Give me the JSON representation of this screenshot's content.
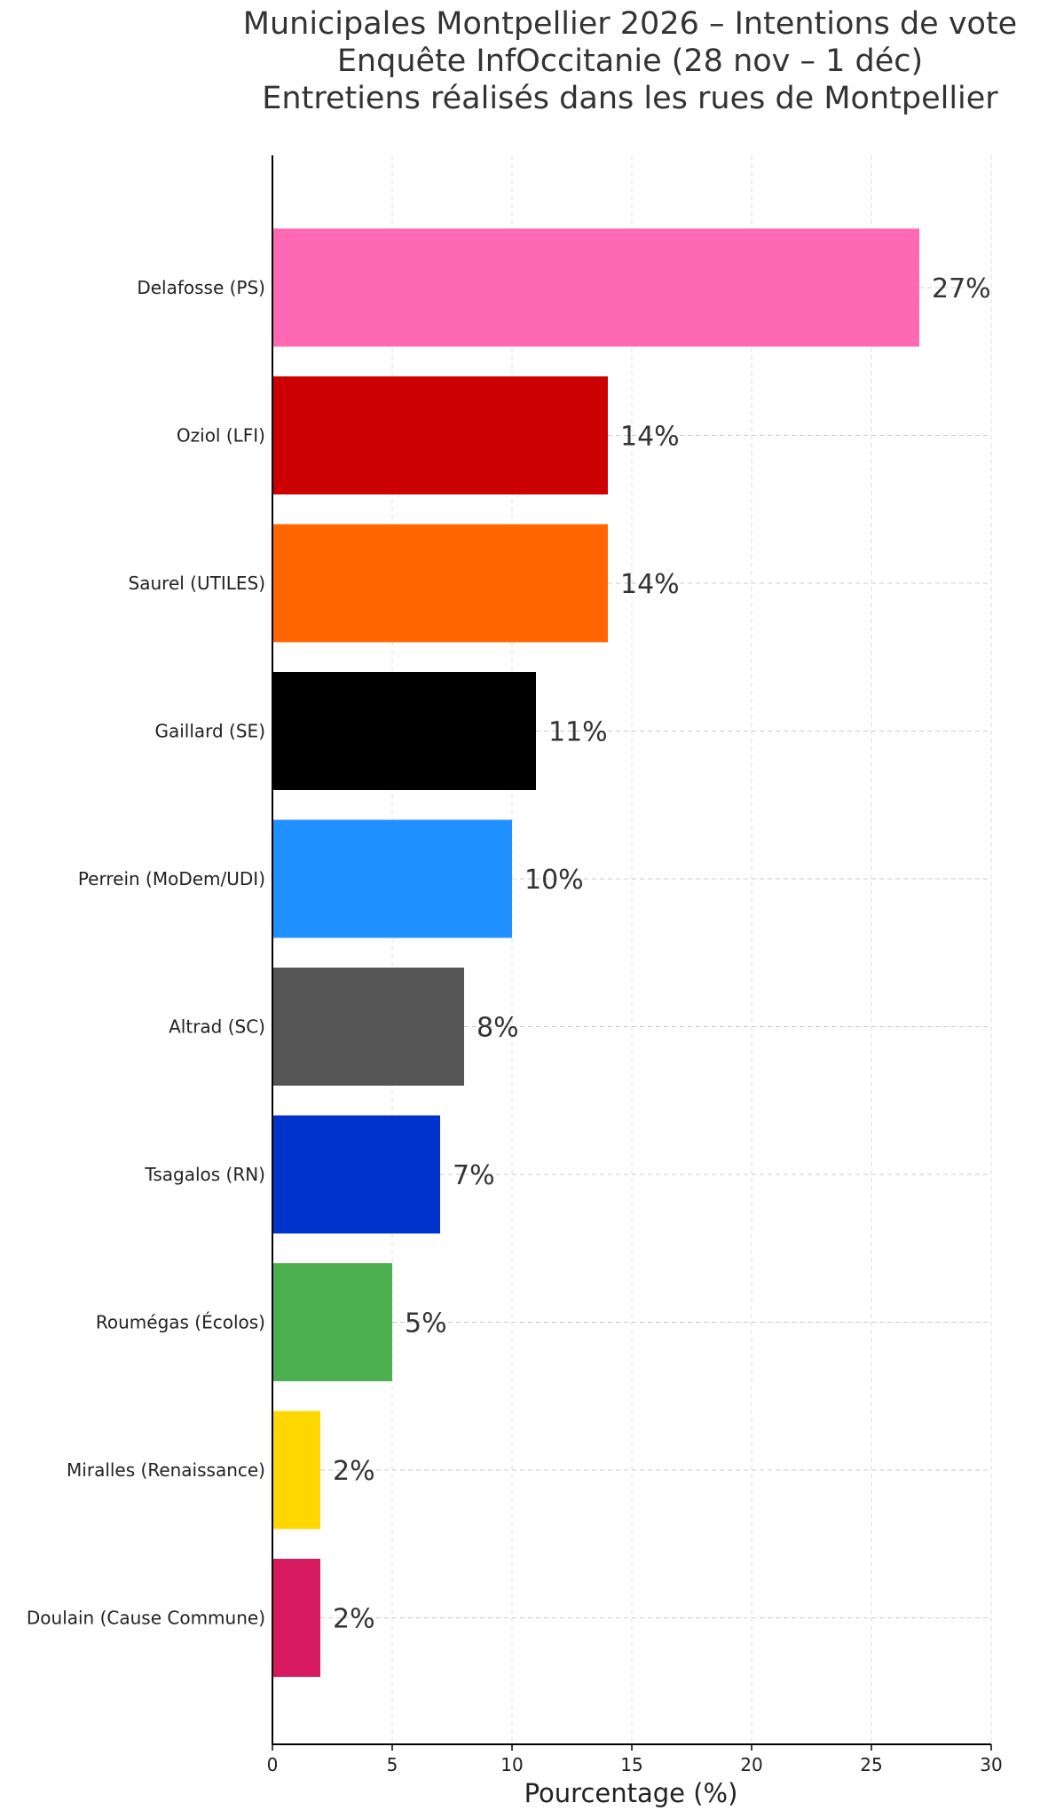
{
  "chart_data": {
    "type": "bar",
    "orientation": "horizontal",
    "title_lines": [
      "Municipales Montpellier 2026 – Intentions de vote",
      "Enquête InfOccitanie (28 nov – 1 déc)",
      "Entretiens réalisés dans les rues de Montpellier"
    ],
    "xlabel": "Pourcentage (%)",
    "ylabel": "",
    "xlim": [
      0,
      30
    ],
    "xticks": [
      0,
      5,
      10,
      15,
      20,
      25,
      30
    ],
    "grid": "x",
    "value_suffix": "%",
    "categories": [
      "Delafosse (PS)",
      "Oziol (LFI)",
      "Saurel (UTILES)",
      "Gaillard (SE)",
      "Perrein (MoDem/UDI)",
      "Altrad (SC)",
      "Tsagalos (RN)",
      "Roumégas (Écolos)",
      "Miralles (Renaissance)",
      "Doulain (Cause Commune)"
    ],
    "values": [
      27,
      14,
      14,
      11,
      10,
      8,
      7,
      5,
      2,
      2
    ],
    "colors": [
      "#ff69b4",
      "#cc0000",
      "#ff6600",
      "#000000",
      "#1e90ff",
      "#555555",
      "#0033cc",
      "#4caf50",
      "#ffd700",
      "#d81b60"
    ]
  }
}
